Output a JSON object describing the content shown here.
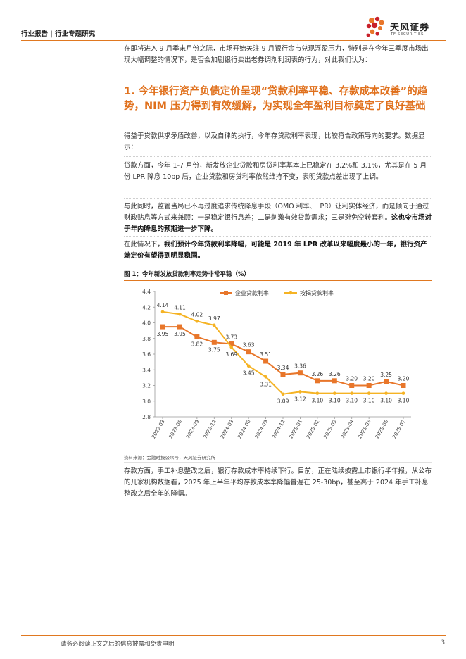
{
  "header": {
    "section": "行业报告 | 行业专题研究"
  },
  "logo": {
    "name": "天风证券",
    "sub": "TF SECURITIES"
  },
  "intro": "在即将进入 9 月季末月份之际，市场开始关注 9 月银行金市兑现浮盈压力，特别是在今年三季度市场出现大幅调整的情况下，是否会加剧银行卖出老券调剂利润表的行为，对此我们认为：",
  "heading": "1. 今年银行资产负债定价呈现“贷款利率平稳、存款成本改善”的趋势，NIM 压力得到有效缓解，为实现全年盈利目标奠定了良好基础",
  "paragraphs": {
    "p1": "得益于贷款供求矛盾改善，以及自律的执行，今年存贷款利率表现，比较符合政策导向的要求。数据显示：",
    "p2": "贷款方面，今年 1-7 月份，新发放企业贷款和房贷利率基本上已稳定在 3.2%和 3.1%，尤其是在 5 月份 LPR 降息 10bp 后，企业贷款和房贷利率依然维持不变，表明贷款点差出现了上调。",
    "p3_a": "与此同时，监管当局已不再过度追求传统降息手段（OMO 利率、LPR）让利实体经济，而是倾向于通过财政贴息等方式来兼顾：一是稳定银行息差；二是刺激有效贷款需求；三是避免空转套利。",
    "p3_b": "这也令市场对于年内降息的预期进一步下降。",
    "p4_a": "在此情况下，",
    "p4_b": "我们预计今年贷款利率降幅，可能是 2019 年 LPR 改革以来幅度最小的一年，银行资产端定价有望得到明显稳固。",
    "p5": "存款方面，手工补息整改之后，银行存款成本率持续下行。目前，正在陆续披露上市银行半年报，从公布的几家机构数据看，2025 年上半年平均存款成本率降幅普遍在 25-30bp，甚至高于 2024 年手工补息整改之后全年的降幅。"
  },
  "figure": {
    "title": "图 1：今年新发放贷款利率走势非常平稳（%）",
    "source": "资料来源：金融时报公众号，天风证券研究所"
  },
  "chart_data": {
    "type": "line",
    "title": "",
    "xlabel": "",
    "ylabel": "",
    "x": [
      "2023-03",
      "2023-06",
      "2023-09",
      "2023-12",
      "2024-03",
      "2024-06",
      "2024-09",
      "2024-12",
      "2025-01",
      "2025-02",
      "2025-03",
      "2025-04",
      "2025-05",
      "2025-06",
      "2025-07"
    ],
    "ylim": [
      2.8,
      4.4
    ],
    "yticks": [
      "2.8",
      "3.0",
      "3.2",
      "3.4",
      "3.6",
      "3.8",
      "4.0",
      "4.2",
      "4.4"
    ],
    "legend_position": "top",
    "series": [
      {
        "name": "企业贷款利率",
        "color": "#e8762a",
        "marker": "square",
        "values": [
          3.95,
          3.95,
          3.82,
          3.75,
          3.73,
          3.63,
          3.51,
          3.34,
          3.36,
          3.26,
          3.26,
          3.2,
          3.2,
          3.25,
          3.2
        ],
        "labels": [
          "3.95",
          "3.95",
          "3.82",
          "3.75",
          "3.73",
          "3.63",
          "3.51",
          "3.34",
          "3.36",
          "3.26",
          "3.26",
          "3.20",
          "3.20",
          "3.25",
          "3.20"
        ]
      },
      {
        "name": "按揭贷款利率",
        "color": "#f5b324",
        "marker": "circle",
        "values": [
          4.14,
          4.11,
          4.02,
          3.97,
          3.69,
          3.45,
          3.31,
          3.09,
          3.12,
          3.1,
          3.1,
          3.1,
          3.1,
          3.1,
          3.1
        ],
        "labels": [
          "4.14",
          "4.11",
          "4.02",
          "3.97",
          "3.69",
          "3.45",
          "3.31",
          "3.09",
          "3.12",
          "3.10",
          "3.10",
          "3.10",
          "3.10",
          "3.10",
          "3.10"
        ]
      }
    ]
  },
  "footer": {
    "disclaimer": "请务必阅读正文之后的信息披露和免责申明",
    "page": "3"
  }
}
